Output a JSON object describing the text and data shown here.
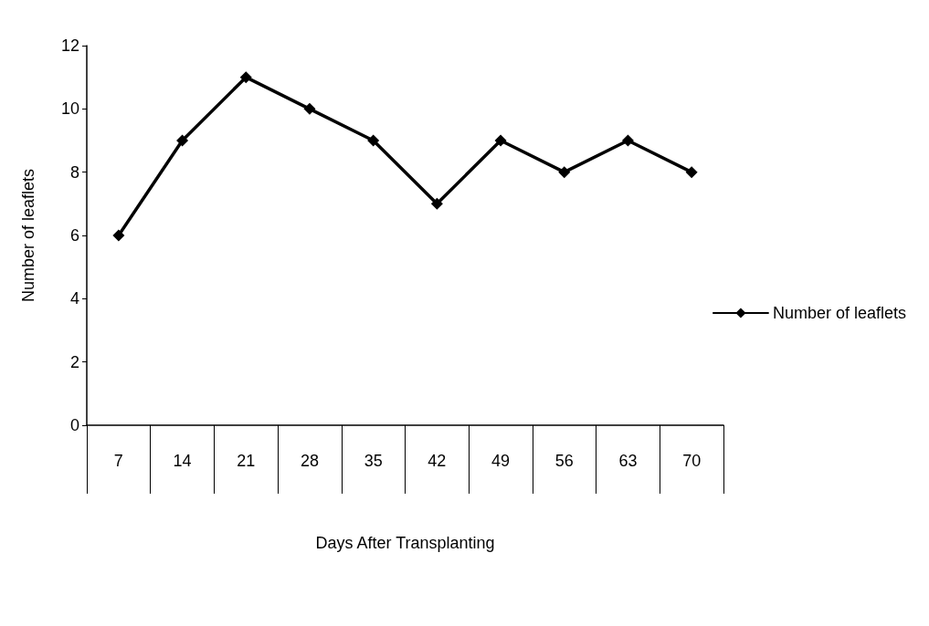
{
  "chart_data": {
    "type": "line",
    "xlabel": "Days After Transplanting",
    "ylabel": "Number of leaflets",
    "categories": [
      "7",
      "14",
      "21",
      "28",
      "35",
      "42",
      "49",
      "56",
      "63",
      "70"
    ],
    "series": [
      {
        "name": "Number of leaflets",
        "color": "#000000",
        "values": [
          6,
          9,
          11,
          10,
          9,
          7,
          9,
          8,
          9,
          8
        ]
      }
    ],
    "ylim": [
      0,
      12
    ],
    "yticks": [
      0,
      2,
      4,
      6,
      8,
      10,
      12
    ],
    "grid": false,
    "legend": "right",
    "marker": "diamond",
    "line_style": "solid"
  }
}
